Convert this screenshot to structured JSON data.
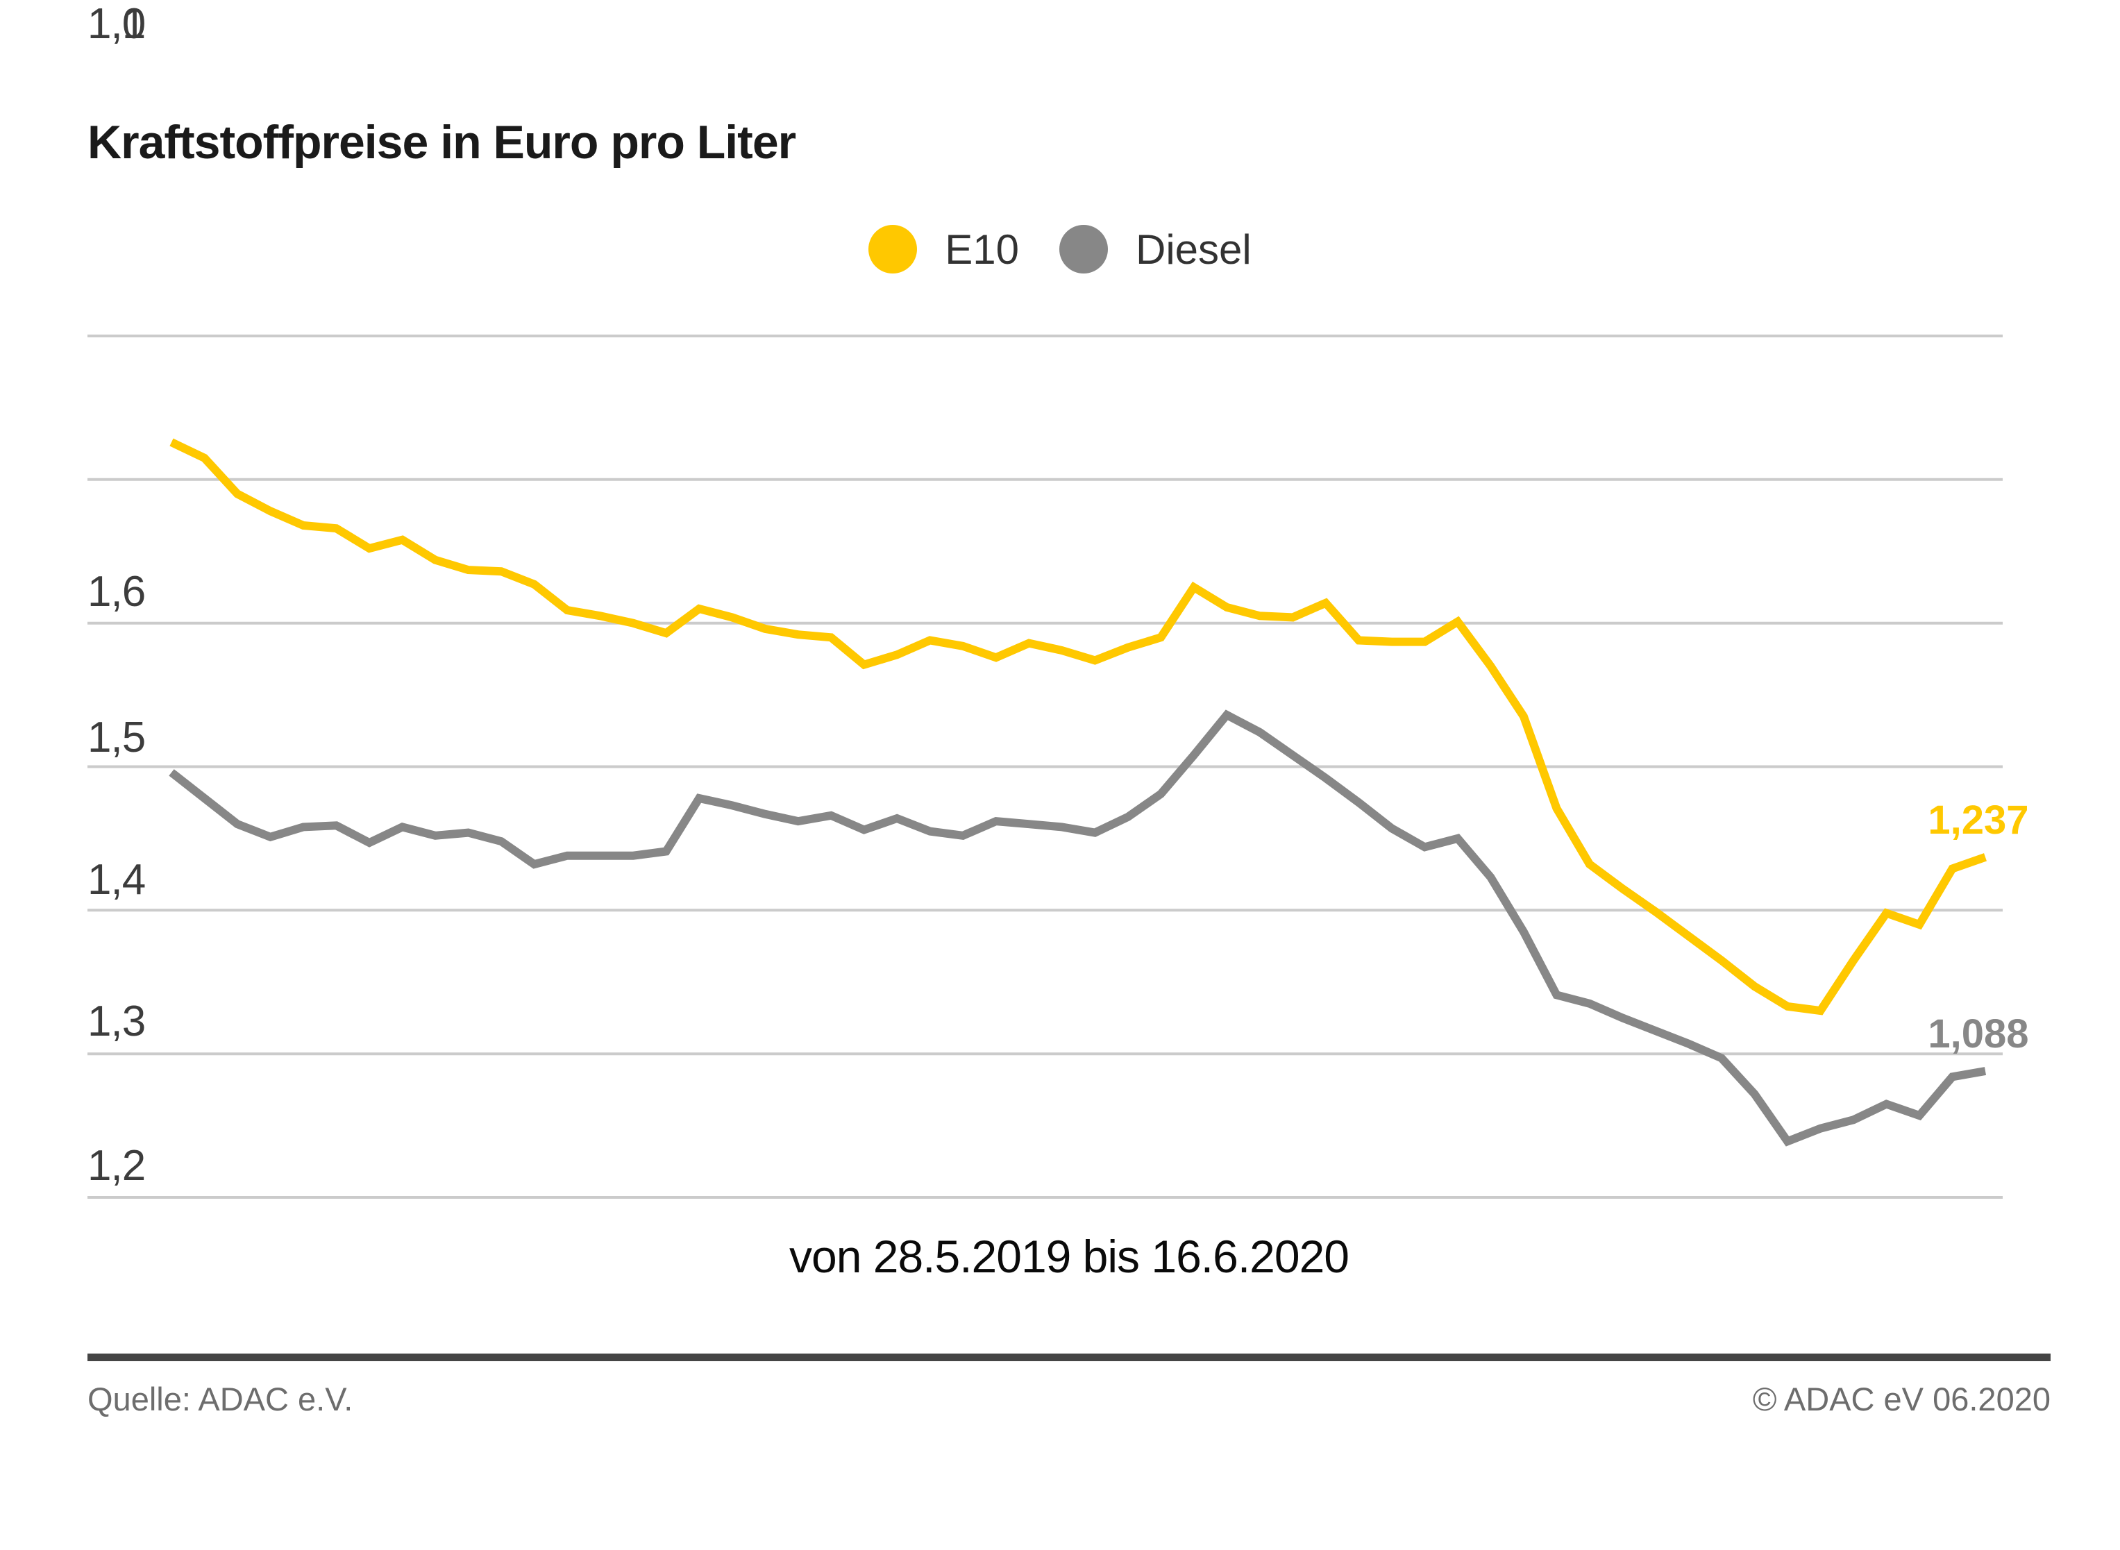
{
  "title": "Kraftstoffpreise in Euro pro Liter",
  "legend": {
    "items": [
      {
        "label": "E10",
        "color": "#FFC800"
      },
      {
        "label": "Diesel",
        "color": "#878787"
      }
    ]
  },
  "chart_data": {
    "type": "line",
    "title": "Kraftstoffpreise in Euro pro Liter",
    "xlabel": "von 28.5.2019 bis 16.6.2020",
    "ylabel": "Euro pro Liter",
    "ylim": [
      1.0,
      1.6
    ],
    "grid": "horizontal",
    "legend_position": "top-center",
    "y_ticks": [
      "1,6",
      "1,5",
      "1,4",
      "1,3",
      "1,2",
      "1,1",
      "1,0"
    ],
    "x_start": "28.5.2019",
    "x_end": "16.6.2020",
    "x_interval": "weekly",
    "series": [
      {
        "name": "E10",
        "color": "#FFC800",
        "end_label": "1,237",
        "end_value": 1.237,
        "values": [
          1.526,
          1.515,
          1.49,
          1.478,
          1.468,
          1.466,
          1.452,
          1.458,
          1.444,
          1.437,
          1.436,
          1.427,
          1.409,
          1.405,
          1.4,
          1.393,
          1.41,
          1.404,
          1.396,
          1.392,
          1.39,
          1.371,
          1.378,
          1.388,
          1.384,
          1.376,
          1.386,
          1.381,
          1.374,
          1.383,
          1.39,
          1.425,
          1.411,
          1.405,
          1.404,
          1.414,
          1.388,
          1.387,
          1.387,
          1.401,
          1.37,
          1.335,
          1.271,
          1.232,
          1.215,
          1.199,
          1.182,
          1.165,
          1.147,
          1.133,
          1.13,
          1.165,
          1.198,
          1.19,
          1.229,
          1.237
        ]
      },
      {
        "name": "Diesel",
        "color": "#878787",
        "end_label": "1,088",
        "end_value": 1.088,
        "values": [
          1.296,
          1.278,
          1.26,
          1.251,
          1.258,
          1.259,
          1.247,
          1.258,
          1.252,
          1.254,
          1.248,
          1.232,
          1.238,
          1.238,
          1.238,
          1.241,
          1.278,
          1.273,
          1.267,
          1.262,
          1.266,
          1.256,
          1.264,
          1.255,
          1.252,
          1.262,
          1.26,
          1.258,
          1.254,
          1.265,
          1.281,
          1.308,
          1.336,
          1.324,
          1.308,
          1.292,
          1.275,
          1.257,
          1.244,
          1.25,
          1.223,
          1.185,
          1.141,
          1.135,
          1.125,
          1.116,
          1.107,
          1.097,
          1.072,
          1.039,
          1.048,
          1.054,
          1.065,
          1.057,
          1.084,
          1.088
        ]
      }
    ]
  },
  "date_note": "von 28.5.2019 bis 16.6.2020",
  "footer": {
    "source": "Quelle: ADAC e.V.",
    "copyright": "© ADAC eV 06.2020"
  },
  "colors": {
    "accent_yellow": "#FFC800",
    "series_gray": "#878787",
    "gridline": "#cbcbcb",
    "title_text": "#1a1a1a",
    "tick_text": "#3c3c3c",
    "footer_text": "#6d6d6d",
    "footer_rule": "#454545",
    "background": "#ffffff"
  }
}
